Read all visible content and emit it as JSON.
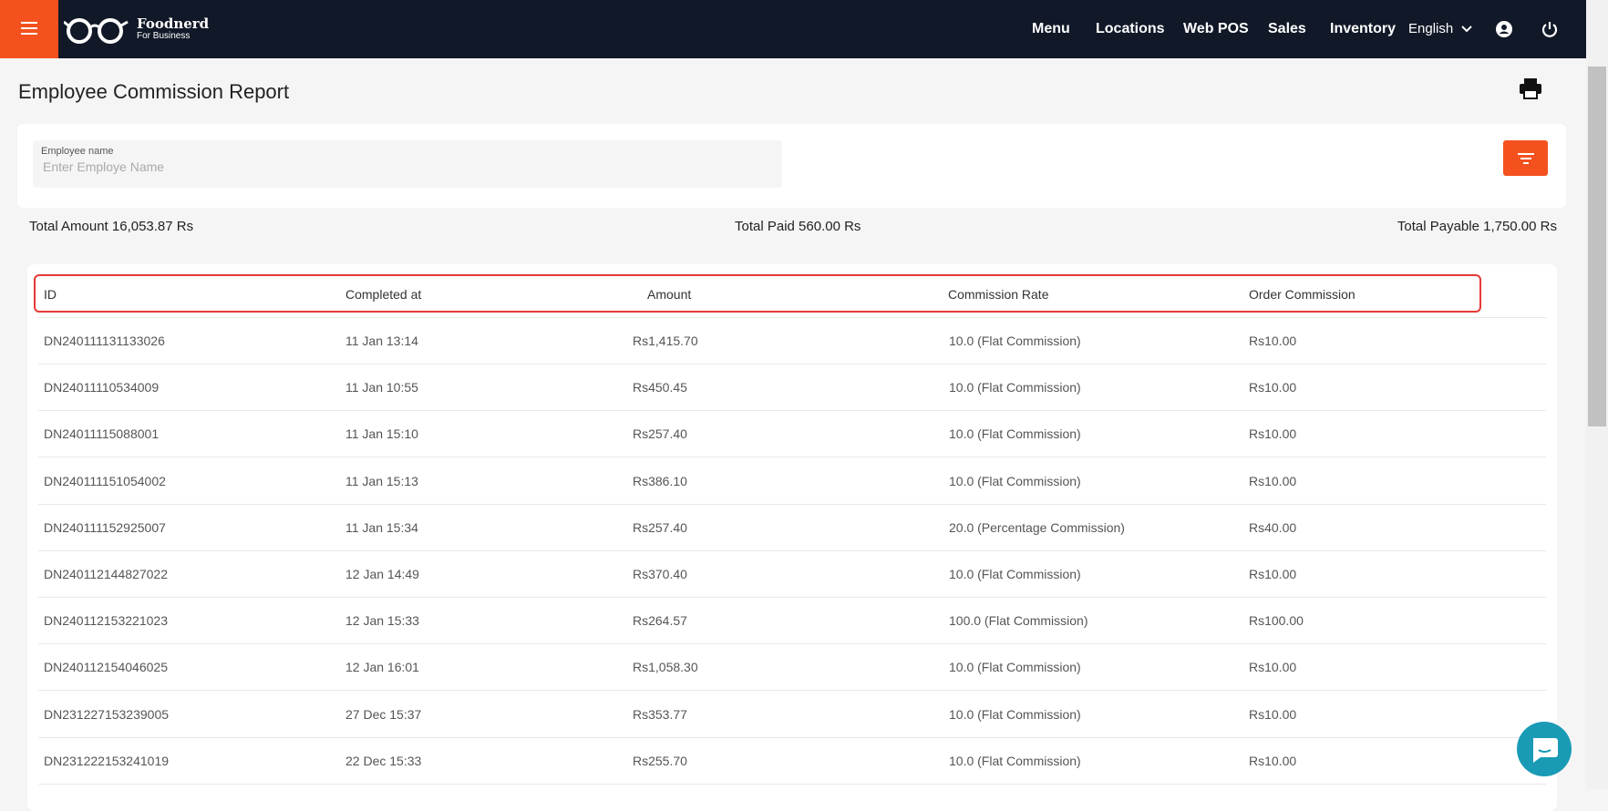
{
  "header": {
    "brand": "Foodnerd",
    "brand_sub": "For Business",
    "nav": [
      "Menu",
      "Locations",
      "Web POS",
      "Sales",
      "Inventory"
    ],
    "language": "English"
  },
  "page": {
    "title": "Employee Commission Report"
  },
  "filter": {
    "label": "Employee name",
    "placeholder": "Enter Employe Name"
  },
  "totals": {
    "amount": "Total Amount 16,053.87 Rs",
    "paid": "Total Paid 560.00 Rs",
    "payable": "Total Payable 1,750.00 Rs"
  },
  "table": {
    "columns": [
      "ID",
      "Completed at",
      "Amount",
      "Commission Rate",
      "Order Commission"
    ],
    "rows": [
      [
        "DN240111131133026",
        "11 Jan 13:14",
        "Rs1,415.70",
        "10.0 (Flat Commission)",
        "Rs10.00"
      ],
      [
        "DN24011110534009",
        "11 Jan 10:55",
        "Rs450.45",
        "10.0 (Flat Commission)",
        "Rs10.00"
      ],
      [
        "DN24011115088001",
        "11 Jan 15:10",
        "Rs257.40",
        "10.0 (Flat Commission)",
        "Rs10.00"
      ],
      [
        "DN240111151054002",
        "11 Jan 15:13",
        "Rs386.10",
        "10.0 (Flat Commission)",
        "Rs10.00"
      ],
      [
        "DN240111152925007",
        "11 Jan 15:34",
        "Rs257.40",
        "20.0 (Percentage Commission)",
        "Rs40.00"
      ],
      [
        "DN240112144827022",
        "12 Jan 14:49",
        "Rs370.40",
        "10.0 (Flat Commission)",
        "Rs10.00"
      ],
      [
        "DN240112153221023",
        "12 Jan 15:33",
        "Rs264.57",
        "100.0 (Flat Commission)",
        "Rs100.00"
      ],
      [
        "DN240112154046025",
        "12 Jan 16:01",
        "Rs1,058.30",
        "10.0 (Flat Commission)",
        "Rs10.00"
      ],
      [
        "DN231227153239005",
        "27 Dec 15:37",
        "Rs353.77",
        "10.0 (Flat Commission)",
        "Rs10.00"
      ],
      [
        "DN231222153241019",
        "22 Dec 15:33",
        "Rs255.70",
        "10.0 (Flat Commission)",
        "Rs10.00"
      ]
    ]
  }
}
